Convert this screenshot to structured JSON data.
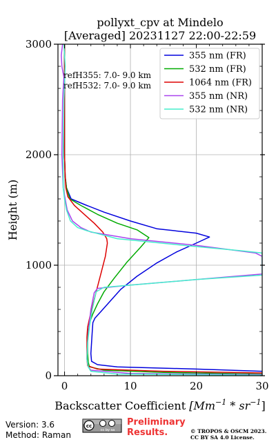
{
  "chart_data": {
    "type": "line",
    "title_line1": "pollyxt_cpv at Mindelo",
    "title_line2": "[Averaged] 20231127 22:00-22:59",
    "xlabel_prefix": "Backscatter Coefficient ",
    "xlabel_unit": "[Mm",
    "xlabel_sup1": "−1",
    "xlabel_mid": " * sr",
    "xlabel_sup2": "−1",
    "xlabel_end": "]",
    "ylabel": "Height (m)",
    "xlim": [
      -1,
      30
    ],
    "ylim": [
      0,
      3000
    ],
    "xticks": [
      0,
      10,
      20,
      30
    ],
    "yticks": [
      0,
      1000,
      2000,
      3000
    ],
    "grid": true,
    "legend_position": "top-right",
    "annotations": [
      "refH355:  7.0- 9.0 km",
      "refH532:  7.0- 9.0 km"
    ],
    "series": [
      {
        "name": "355 nm (FR)",
        "color": "#0000dd",
        "points": [
          [
            30,
            40
          ],
          [
            20,
            60
          ],
          [
            8,
            80
          ],
          [
            5,
            100
          ],
          [
            4.1,
            130
          ],
          [
            4,
            200
          ],
          [
            4.1,
            300
          ],
          [
            4.2,
            400
          ],
          [
            4.3,
            480
          ],
          [
            4.6,
            520
          ],
          [
            5.5,
            580
          ],
          [
            7,
            680
          ],
          [
            8.5,
            780
          ],
          [
            11,
            900
          ],
          [
            14,
            1020
          ],
          [
            17,
            1120
          ],
          [
            20,
            1200
          ],
          [
            22,
            1255
          ],
          [
            20,
            1290
          ],
          [
            14,
            1330
          ],
          [
            10,
            1400
          ],
          [
            6,
            1480
          ],
          [
            3,
            1550
          ],
          [
            1,
            1600
          ],
          [
            0.3,
            1700
          ],
          [
            0.1,
            1800
          ],
          [
            0,
            2000
          ],
          [
            0,
            2500
          ],
          [
            0,
            3000
          ]
        ]
      },
      {
        "name": "532 nm (FR)",
        "color": "#00aa00",
        "points": [
          [
            30,
            15
          ],
          [
            15,
            30
          ],
          [
            6,
            50
          ],
          [
            3.8,
            80
          ],
          [
            3.6,
            120
          ],
          [
            3.5,
            200
          ],
          [
            3.5,
            300
          ],
          [
            3.6,
            400
          ],
          [
            3.8,
            480
          ],
          [
            4.3,
            560
          ],
          [
            5,
            650
          ],
          [
            6,
            760
          ],
          [
            7.5,
            880
          ],
          [
            9.5,
            1030
          ],
          [
            11.5,
            1160
          ],
          [
            12.8,
            1250
          ],
          [
            11,
            1320
          ],
          [
            8,
            1380
          ],
          [
            5,
            1460
          ],
          [
            2.5,
            1540
          ],
          [
            0.8,
            1600
          ],
          [
            0.3,
            1700
          ],
          [
            0.1,
            1800
          ],
          [
            0,
            2000
          ],
          [
            0,
            2500
          ],
          [
            0,
            3000
          ]
        ]
      },
      {
        "name": "1064 nm (FR)",
        "color": "#dd0000",
        "points": [
          [
            30,
            25
          ],
          [
            15,
            40
          ],
          [
            5,
            60
          ],
          [
            3.5,
            90
          ],
          [
            3.4,
            150
          ],
          [
            3.4,
            250
          ],
          [
            3.4,
            350
          ],
          [
            3.5,
            440
          ],
          [
            3.8,
            520
          ],
          [
            4.2,
            620
          ],
          [
            4.8,
            760
          ],
          [
            5.5,
            920
          ],
          [
            6.2,
            1080
          ],
          [
            6.5,
            1200
          ],
          [
            6.4,
            1240
          ],
          [
            5.8,
            1300
          ],
          [
            4.5,
            1380
          ],
          [
            3,
            1460
          ],
          [
            1.5,
            1540
          ],
          [
            0.5,
            1620
          ],
          [
            0.2,
            1700
          ],
          [
            0.1,
            1800
          ],
          [
            0,
            2000
          ],
          [
            0,
            2500
          ],
          [
            0,
            3000
          ]
        ]
      },
      {
        "name": "355 nm (NR)",
        "color": "#aa44ee",
        "points": [
          [
            30,
            10
          ],
          [
            10,
            20
          ],
          [
            4,
            50
          ],
          [
            3.6,
            80
          ],
          [
            3.4,
            150
          ],
          [
            3.5,
            300
          ],
          [
            3.7,
            450
          ],
          [
            4,
            600
          ],
          [
            4.5,
            750
          ],
          [
            5,
            790
          ],
          [
            10,
            820
          ],
          [
            20,
            870
          ],
          [
            30,
            920
          ],
          [
            30,
            1080
          ],
          [
            29,
            1110
          ],
          [
            20,
            1180
          ],
          [
            10,
            1240
          ],
          [
            4,
            1300
          ],
          [
            2.5,
            1340
          ],
          [
            1.2,
            1400
          ],
          [
            0.4,
            1500
          ],
          [
            0.1,
            1600
          ],
          [
            -0.2,
            1700
          ],
          [
            -0.4,
            2000
          ],
          [
            -0.3,
            2500
          ],
          [
            -0.1,
            2700
          ],
          [
            -0.4,
            2800
          ],
          [
            -0.5,
            2900
          ],
          [
            -0.3,
            3000
          ]
        ]
      },
      {
        "name": "532 nm (NR)",
        "color": "#44eecc",
        "points": [
          [
            30,
            5
          ],
          [
            8,
            15
          ],
          [
            4,
            40
          ],
          [
            3.6,
            80
          ],
          [
            3.4,
            150
          ],
          [
            3.5,
            300
          ],
          [
            3.8,
            450
          ],
          [
            4.2,
            600
          ],
          [
            4.8,
            760
          ],
          [
            6,
            800
          ],
          [
            12,
            830
          ],
          [
            20,
            870
          ],
          [
            30,
            910
          ],
          [
            30,
            1110
          ],
          [
            27,
            1130
          ],
          [
            18,
            1180
          ],
          [
            8,
            1240
          ],
          [
            3.5,
            1310
          ],
          [
            2,
            1340
          ],
          [
            0.9,
            1400
          ],
          [
            0.3,
            1500
          ],
          [
            0,
            1600
          ],
          [
            -0.2,
            1700
          ],
          [
            -0.2,
            2000
          ],
          [
            -0.1,
            2500
          ],
          [
            0.1,
            2800
          ],
          [
            -0.1,
            3000
          ]
        ]
      }
    ]
  },
  "footer": {
    "version": "Version: 3.6",
    "method": "Method: Raman",
    "license_badge": "cc by sa",
    "preliminary": "Preliminary",
    "results": "Results.",
    "copyright": "© TROPOS & OSCM 2023.",
    "license": "CC BY SA 4.0 License."
  },
  "colors": {
    "preliminary": "#ee3333",
    "grid": "#b0b0b0"
  }
}
